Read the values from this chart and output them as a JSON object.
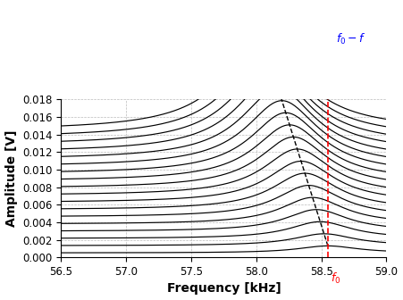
{
  "xmin": 56.5,
  "xmax": 59.0,
  "ymin": 0,
  "ymax": 0.018,
  "xlabel": "Frequency [kHz]",
  "ylabel": "Amplitude [V]",
  "f0": 58.55,
  "xticks": [
    56.5,
    57.0,
    57.5,
    58.0,
    58.5,
    59.0
  ],
  "yticks": [
    0,
    0.002,
    0.004,
    0.006,
    0.008,
    0.01,
    0.012,
    0.014,
    0.016,
    0.018
  ],
  "n_curves": 18,
  "background_color": "#ffffff",
  "line_color": "#000000",
  "grid_color": "#aaaaaa",
  "f0_line_color": "#ff0000",
  "peak_line_color": "#000000",
  "arrow_color": "#0000ff",
  "annotation_color": "#0000ff",
  "annotation_color_red": "#ff0000"
}
